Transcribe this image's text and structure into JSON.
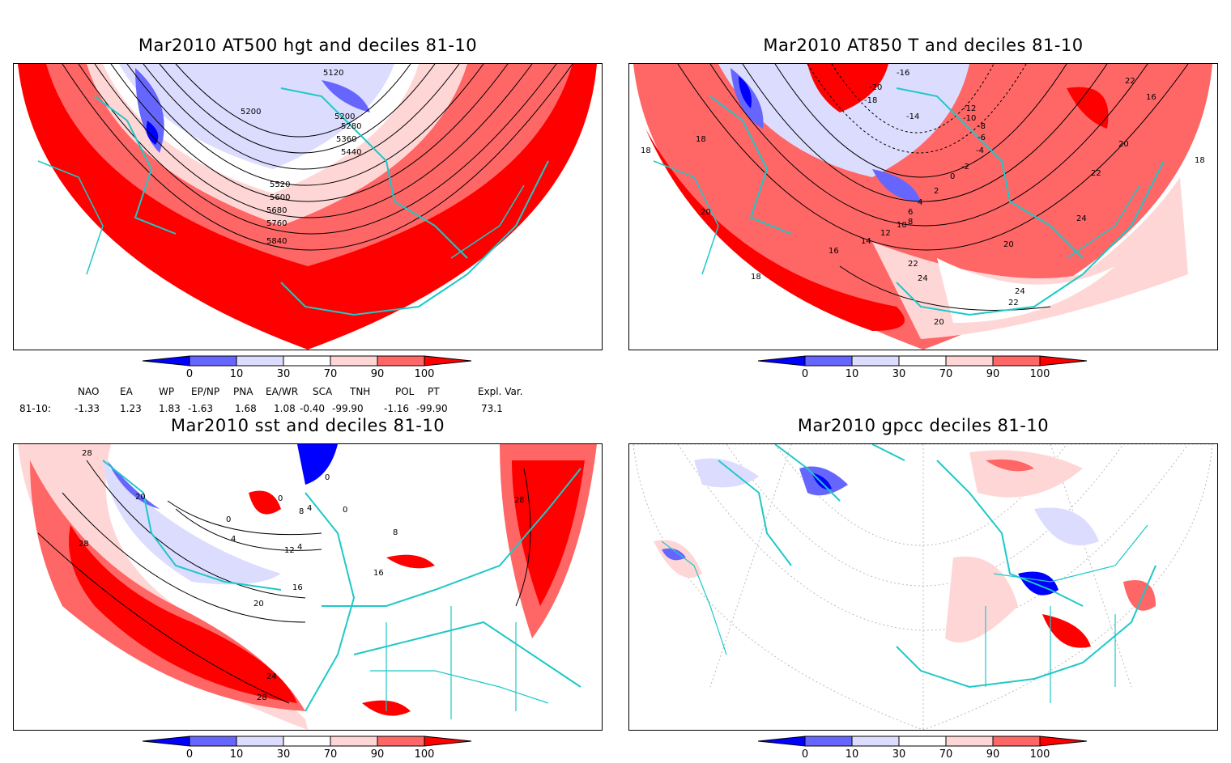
{
  "colors": {
    "d0_10": "#0000ff",
    "d10_30": "#6666ff",
    "d30": "#dcdcff",
    "d70_90": "#ffd6d6",
    "d90_100": "#ff6666",
    "d100": "#ff0000",
    "coast": "#1fc8c8",
    "contour": "#000000"
  },
  "colorbar": {
    "ticks": [
      "0",
      "10",
      "30",
      "70",
      "90",
      "100"
    ]
  },
  "panels": [
    {
      "title": "Mar2010 AT500 hgt and deciles 81-10",
      "contour_labels": [
        "5120",
        "5200",
        "5200",
        "5280",
        "5360",
        "5440",
        "5520",
        "5600",
        "5680",
        "5760",
        "5840"
      ]
    },
    {
      "title": "Mar2010 AT850 T and deciles 81-10",
      "contour_labels": [
        "-16",
        "-20",
        "-18",
        "-14",
        "-12",
        "-10",
        "-8",
        "-6",
        "-4",
        "-2",
        "0",
        "2",
        "4",
        "6",
        "8",
        "10",
        "12",
        "14",
        "16",
        "18",
        "18",
        "18",
        "20",
        "20",
        "20",
        "22",
        "22",
        "22",
        "24",
        "24",
        "24",
        "18",
        "16",
        "20",
        "22"
      ]
    },
    {
      "title": "Mar2010 sst and deciles 81-10",
      "contour_labels": [
        "28",
        "20",
        "28",
        "0",
        "4",
        "8",
        "4",
        "0",
        "12",
        "16",
        "16",
        "20",
        "24",
        "28",
        "28",
        "0",
        "4",
        "8",
        "0"
      ]
    },
    {
      "title": "Mar2010 gpcc deciles 81-10",
      "contour_labels": []
    }
  ],
  "teleconnections": {
    "headers": [
      "NAO",
      "EA",
      "WP",
      "EP/NP",
      "PNA",
      "EA/WR",
      "SCA",
      "TNH",
      "POL",
      "PT",
      "Expl. Var."
    ],
    "row_label": "81-10:",
    "values": [
      "-1.33",
      "1.23",
      "1.83",
      "-1.63",
      "1.68",
      "1.08",
      "-0.40",
      "-99.90",
      "-1.16",
      "-99.90",
      "73.1"
    ]
  }
}
